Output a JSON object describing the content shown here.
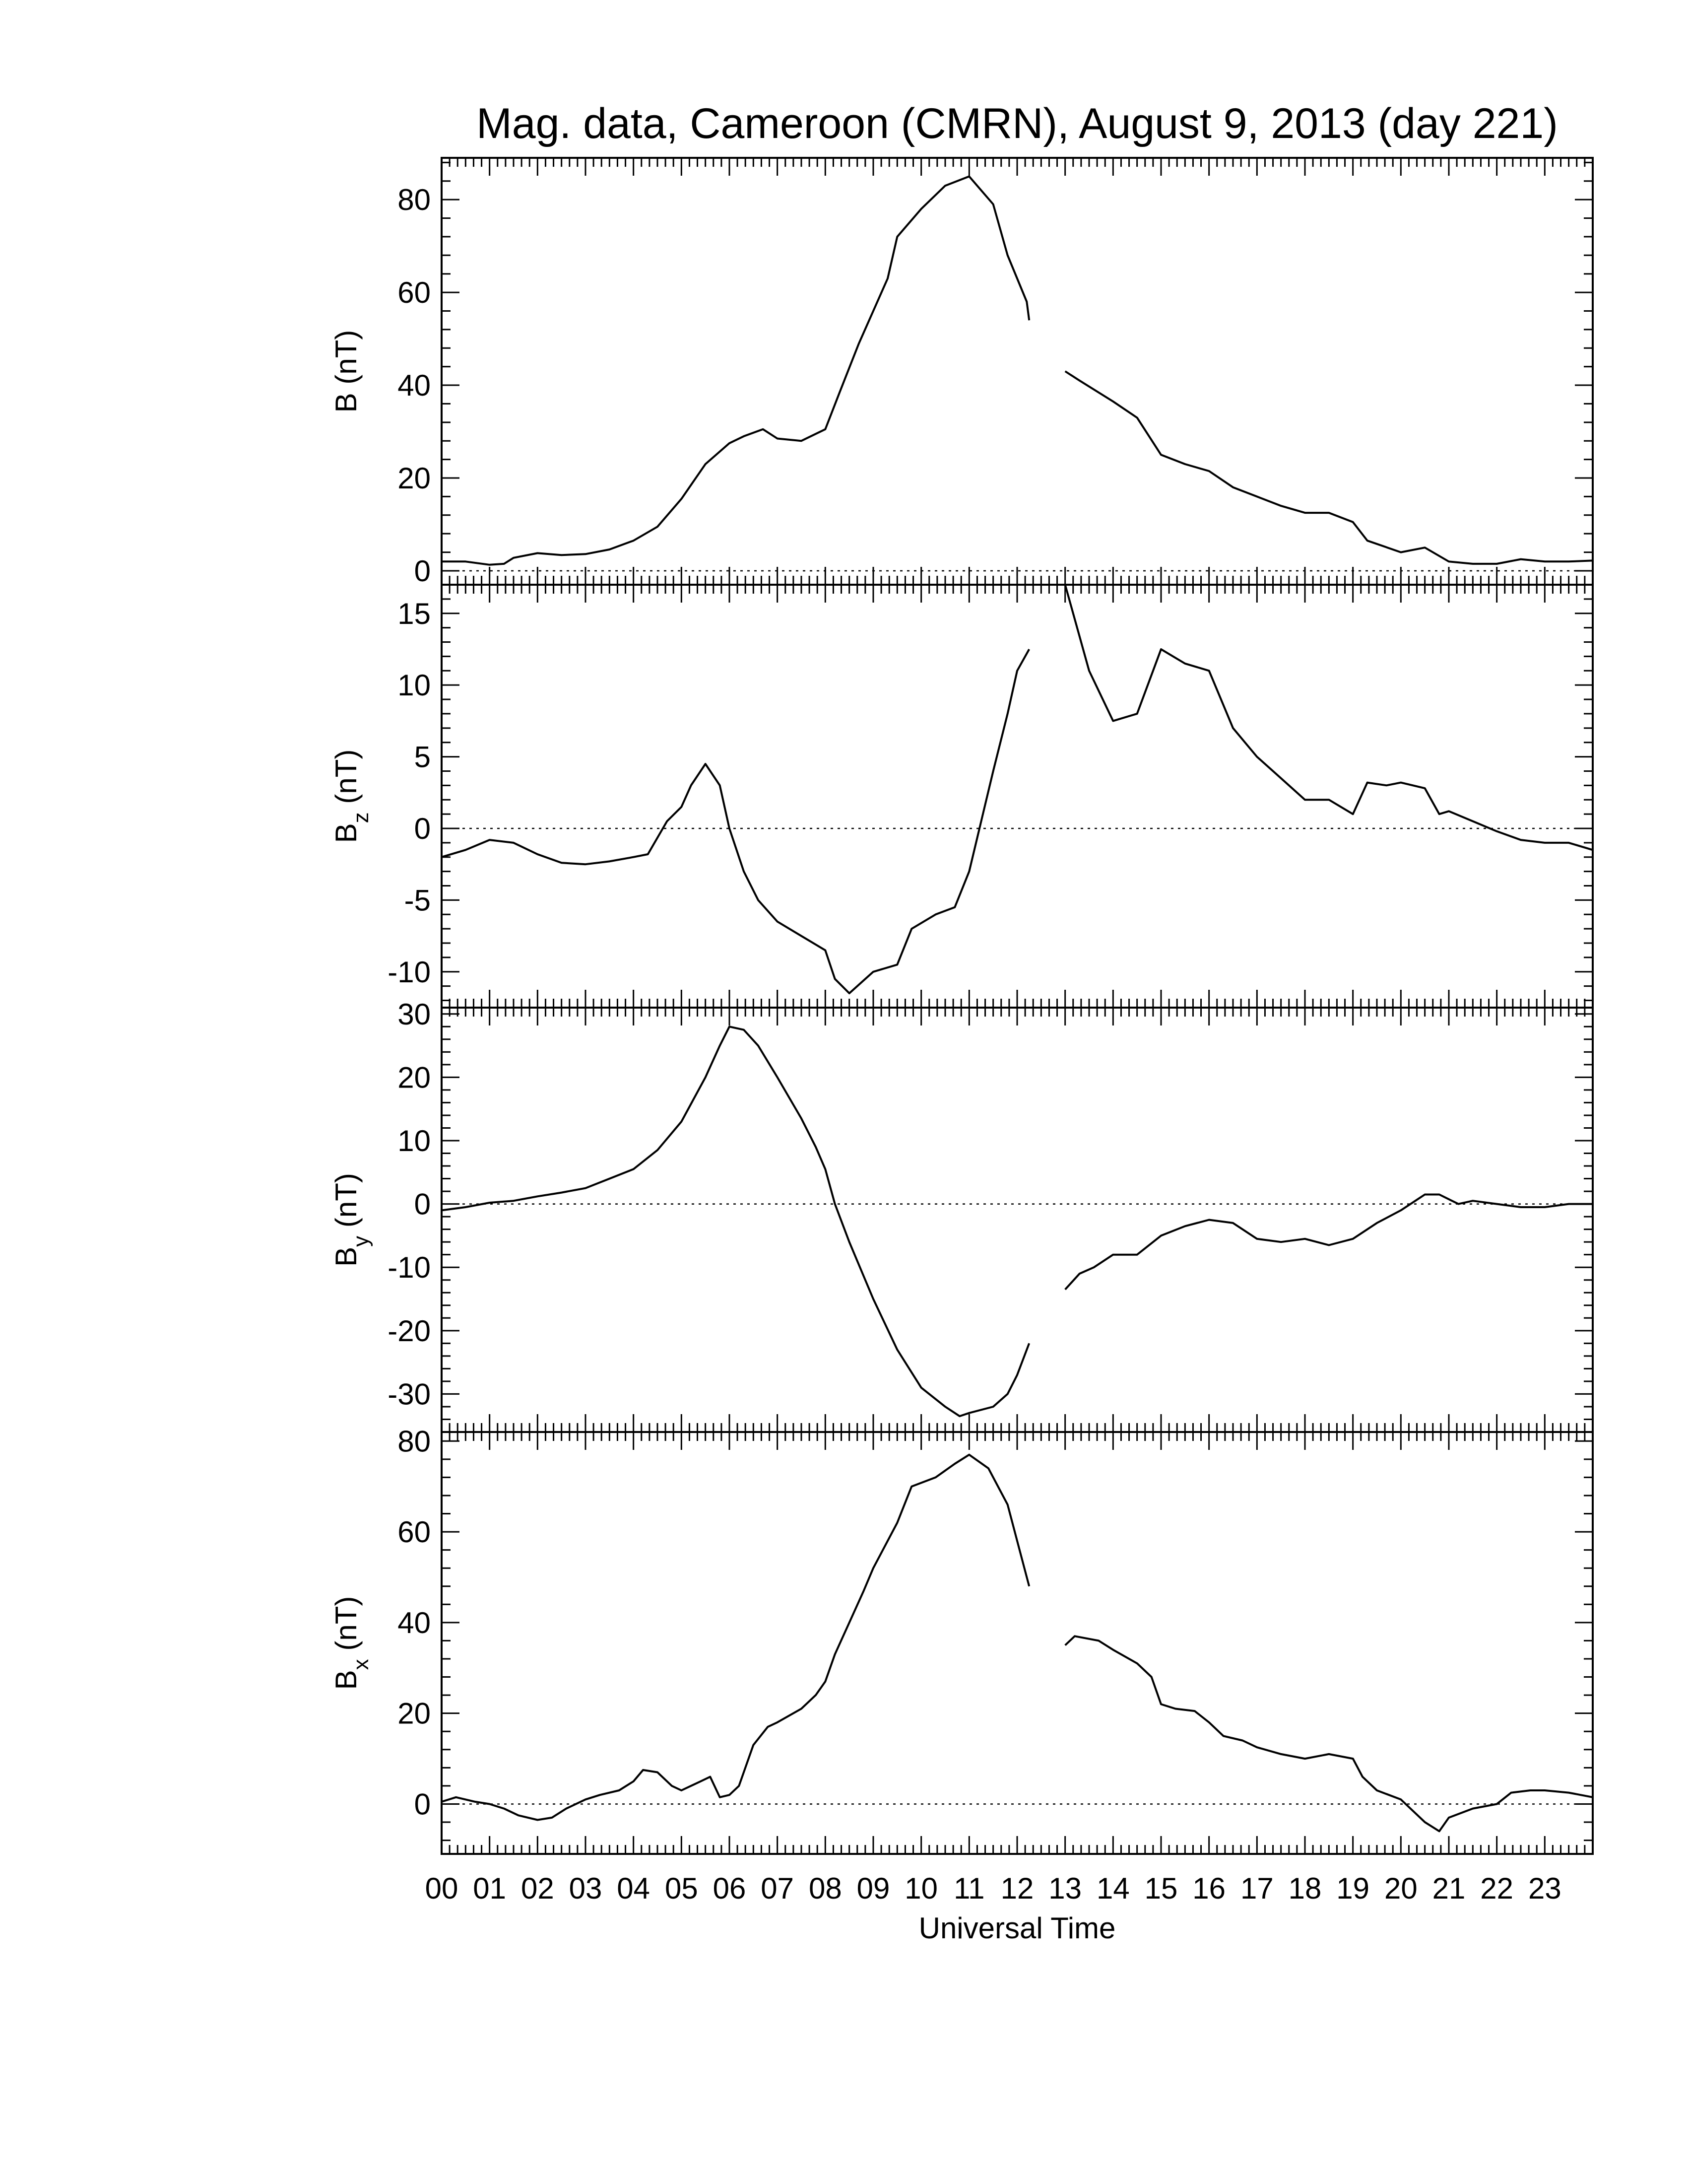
{
  "chart_data": {
    "type": "line",
    "title": "Mag. data, Cameroon (CMRN), August 9, 2013 (day 221)",
    "xlabel": "Universal Time",
    "xlim": [
      0,
      24
    ],
    "x_tick_labels": [
      "00",
      "01",
      "02",
      "03",
      "04",
      "05",
      "06",
      "07",
      "08",
      "09",
      "10",
      "11",
      "12",
      "13",
      "14",
      "15",
      "16",
      "17",
      "18",
      "19",
      "20",
      "21",
      "22",
      "23"
    ],
    "data_gap_hours": [
      12.25,
      13.0
    ],
    "panels": [
      {
        "id": "B",
        "ylabel_main": "B",
        "ylabel_sub": "",
        "ylabel_unit": "(nT)",
        "ylim": [
          -3,
          89
        ],
        "yticks": [
          0,
          20,
          40,
          60,
          80
        ],
        "ytick_labels": [
          "0",
          "20",
          "40",
          "60",
          "80"
        ],
        "zero_line": true,
        "segments": [
          [
            [
              0,
              2
            ],
            [
              0.5,
              2
            ],
            [
              1,
              1.3
            ],
            [
              1.3,
              1.5
            ],
            [
              1.5,
              2.8
            ],
            [
              2,
              3.8
            ],
            [
              2.5,
              3.4
            ],
            [
              3,
              3.6
            ],
            [
              3.5,
              4.6
            ],
            [
              4,
              6.5
            ],
            [
              4.5,
              9.5
            ],
            [
              5,
              15.5
            ],
            [
              5.5,
              23
            ],
            [
              6,
              27.5
            ],
            [
              6.3,
              29
            ],
            [
              6.7,
              30.5
            ],
            [
              7,
              28.5
            ],
            [
              7.5,
              28
            ],
            [
              8,
              30.5
            ],
            [
              8.3,
              38.5
            ],
            [
              8.7,
              49
            ],
            [
              9,
              56
            ],
            [
              9.3,
              63
            ],
            [
              9.5,
              72
            ],
            [
              10,
              78
            ],
            [
              10.5,
              83
            ],
            [
              11,
              85
            ],
            [
              11.5,
              79
            ],
            [
              11.8,
              68
            ],
            [
              12.2,
              58
            ],
            [
              12.25,
              54
            ]
          ],
          [
            [
              13,
              43
            ],
            [
              13.3,
              41
            ],
            [
              14,
              36.5
            ],
            [
              14.5,
              33
            ],
            [
              15,
              25
            ],
            [
              15.5,
              23
            ],
            [
              16,
              21.5
            ],
            [
              16.5,
              18
            ],
            [
              17,
              16
            ],
            [
              17.5,
              14
            ],
            [
              18,
              12.5
            ],
            [
              18.5,
              12.5
            ],
            [
              19,
              10.5
            ],
            [
              19.3,
              6.5
            ],
            [
              20,
              4
            ],
            [
              20.5,
              5
            ],
            [
              21,
              2
            ],
            [
              21.5,
              1.5
            ],
            [
              22,
              1.5
            ],
            [
              22.5,
              2.5
            ],
            [
              23,
              2
            ],
            [
              23.5,
              2
            ],
            [
              24,
              2.2
            ]
          ]
        ]
      },
      {
        "id": "Bz",
        "ylabel_main": "B",
        "ylabel_sub": "z",
        "ylabel_unit": "(nT)",
        "ylim": [
          -12.5,
          17
        ],
        "yticks": [
          -10,
          -5,
          0,
          5,
          10,
          15
        ],
        "ytick_labels": [
          "-10",
          "-5",
          "0",
          "5",
          "10",
          "15"
        ],
        "zero_line": true,
        "segments": [
          [
            [
              0,
              -2
            ],
            [
              0.5,
              -1.5
            ],
            [
              1,
              -0.8
            ],
            [
              1.5,
              -1
            ],
            [
              2,
              -1.8
            ],
            [
              2.5,
              -2.4
            ],
            [
              3,
              -2.5
            ],
            [
              3.5,
              -2.3
            ],
            [
              4,
              -2
            ],
            [
              4.3,
              -1.8
            ],
            [
              4.7,
              0.5
            ],
            [
              5,
              1.5
            ],
            [
              5.2,
              3
            ],
            [
              5.5,
              4.5
            ],
            [
              5.8,
              3
            ],
            [
              6,
              0
            ],
            [
              6.3,
              -3
            ],
            [
              6.6,
              -5
            ],
            [
              7,
              -6.5
            ],
            [
              7.5,
              -7.5
            ],
            [
              8,
              -8.5
            ],
            [
              8.2,
              -10.5
            ],
            [
              8.5,
              -11.5
            ],
            [
              9,
              -10
            ],
            [
              9.5,
              -9.5
            ],
            [
              9.8,
              -7
            ],
            [
              10.3,
              -6
            ],
            [
              10.7,
              -5.5
            ],
            [
              11,
              -3
            ],
            [
              11.5,
              4
            ],
            [
              11.8,
              8
            ],
            [
              12,
              11
            ],
            [
              12.25,
              12.5
            ]
          ],
          [
            [
              13,
              17
            ],
            [
              13.5,
              11
            ],
            [
              14,
              7.5
            ],
            [
              14.5,
              8
            ],
            [
              15,
              12.5
            ],
            [
              15.5,
              11.5
            ],
            [
              16,
              11
            ],
            [
              16.5,
              7
            ],
            [
              17,
              5
            ],
            [
              17.5,
              3.5
            ],
            [
              18,
              2
            ],
            [
              18.5,
              2
            ],
            [
              19,
              1
            ],
            [
              19.3,
              3.2
            ],
            [
              19.7,
              3
            ],
            [
              20,
              3.2
            ],
            [
              20.5,
              2.8
            ],
            [
              20.8,
              1
            ],
            [
              21,
              1.2
            ],
            [
              21.5,
              0.5
            ],
            [
              22,
              -0.2
            ],
            [
              22.5,
              -0.8
            ],
            [
              23,
              -1
            ],
            [
              23.5,
              -1
            ],
            [
              24,
              -1.5
            ]
          ]
        ]
      },
      {
        "id": "By",
        "ylabel_main": "B",
        "ylabel_sub": "y",
        "ylabel_unit": "(nT)",
        "ylim": [
          -36,
          31
        ],
        "yticks": [
          -30,
          -20,
          -10,
          0,
          10,
          20,
          30
        ],
        "ytick_labels": [
          "-30",
          "-20",
          "-10",
          "0",
          "10",
          "20",
          "30"
        ],
        "zero_line": true,
        "segments": [
          [
            [
              0,
              -1
            ],
            [
              0.5,
              -0.5
            ],
            [
              1,
              0.2
            ],
            [
              1.5,
              0.5
            ],
            [
              2,
              1.2
            ],
            [
              2.5,
              1.8
            ],
            [
              3,
              2.5
            ],
            [
              3.5,
              4
            ],
            [
              4,
              5.5
            ],
            [
              4.5,
              8.5
            ],
            [
              5,
              13
            ],
            [
              5.5,
              20
            ],
            [
              5.8,
              25
            ],
            [
              6,
              28
            ],
            [
              6.3,
              27.5
            ],
            [
              6.6,
              25
            ],
            [
              7,
              20
            ],
            [
              7.5,
              13.5
            ],
            [
              7.8,
              9
            ],
            [
              8,
              5.5
            ],
            [
              8.2,
              0
            ],
            [
              8.5,
              -6
            ],
            [
              9,
              -15
            ],
            [
              9.5,
              -23
            ],
            [
              10,
              -29
            ],
            [
              10.5,
              -32
            ],
            [
              10.8,
              -33.5
            ],
            [
              11,
              -33
            ],
            [
              11.5,
              -32
            ],
            [
              11.8,
              -30
            ],
            [
              12,
              -27
            ],
            [
              12.25,
              -22
            ]
          ],
          [
            [
              13,
              -13.5
            ],
            [
              13.3,
              -11
            ],
            [
              13.6,
              -10
            ],
            [
              14,
              -8
            ],
            [
              14.5,
              -8
            ],
            [
              15,
              -5
            ],
            [
              15.5,
              -3.5
            ],
            [
              16,
              -2.5
            ],
            [
              16.5,
              -3
            ],
            [
              17,
              -5.5
            ],
            [
              17.5,
              -6
            ],
            [
              18,
              -5.5
            ],
            [
              18.5,
              -6.5
            ],
            [
              19,
              -5.5
            ],
            [
              19.5,
              -3
            ],
            [
              20,
              -1
            ],
            [
              20.5,
              1.5
            ],
            [
              20.8,
              1.5
            ],
            [
              21.2,
              0
            ],
            [
              21.5,
              0.5
            ],
            [
              22,
              0
            ],
            [
              22.5,
              -0.5
            ],
            [
              23,
              -0.5
            ],
            [
              23.5,
              0
            ],
            [
              24,
              0
            ]
          ]
        ]
      },
      {
        "id": "Bx",
        "ylabel_main": "B",
        "ylabel_sub": "x",
        "ylabel_unit": "(nT)",
        "ylim": [
          -11,
          82
        ],
        "yticks": [
          0,
          20,
          40,
          60,
          80
        ],
        "ytick_labels": [
          "0",
          "20",
          "40",
          "60",
          "80"
        ],
        "zero_line": true,
        "segments": [
          [
            [
              0,
              0.5
            ],
            [
              0.3,
              1.5
            ],
            [
              0.7,
              0.5
            ],
            [
              1,
              0
            ],
            [
              1.3,
              -1
            ],
            [
              1.6,
              -2.5
            ],
            [
              2,
              -3.5
            ],
            [
              2.3,
              -3
            ],
            [
              2.6,
              -1
            ],
            [
              3,
              1
            ],
            [
              3.3,
              2
            ],
            [
              3.7,
              3
            ],
            [
              4,
              5
            ],
            [
              4.2,
              7.5
            ],
            [
              4.5,
              7
            ],
            [
              4.8,
              4
            ],
            [
              5,
              3
            ],
            [
              5.4,
              5
            ],
            [
              5.6,
              6
            ],
            [
              5.8,
              1.5
            ],
            [
              6,
              2
            ],
            [
              6.2,
              4
            ],
            [
              6.5,
              13
            ],
            [
              6.8,
              17
            ],
            [
              7,
              18
            ],
            [
              7.5,
              21
            ],
            [
              7.8,
              24
            ],
            [
              8,
              27
            ],
            [
              8.2,
              33
            ],
            [
              8.5,
              40
            ],
            [
              8.8,
              47
            ],
            [
              9,
              52
            ],
            [
              9.5,
              62
            ],
            [
              9.8,
              70
            ],
            [
              10.3,
              72
            ],
            [
              10.7,
              75
            ],
            [
              11,
              77
            ],
            [
              11.4,
              74
            ],
            [
              11.8,
              66
            ],
            [
              12,
              58
            ],
            [
              12.25,
              48
            ]
          ],
          [
            [
              13,
              35
            ],
            [
              13.2,
              37
            ],
            [
              13.7,
              36
            ],
            [
              14,
              34
            ],
            [
              14.5,
              31
            ],
            [
              14.8,
              28
            ],
            [
              15,
              22
            ],
            [
              15.3,
              21
            ],
            [
              15.7,
              20.5
            ],
            [
              16,
              18
            ],
            [
              16.3,
              15
            ],
            [
              16.7,
              14
            ],
            [
              17,
              12.5
            ],
            [
              17.5,
              11
            ],
            [
              18,
              10
            ],
            [
              18.5,
              11
            ],
            [
              19,
              10
            ],
            [
              19.2,
              6
            ],
            [
              19.5,
              3
            ],
            [
              20,
              1
            ],
            [
              20.3,
              -2
            ],
            [
              20.5,
              -4
            ],
            [
              20.8,
              -6
            ],
            [
              21,
              -3
            ],
            [
              21.5,
              -1
            ],
            [
              22,
              0
            ],
            [
              22.3,
              2.5
            ],
            [
              22.7,
              3
            ],
            [
              23,
              3
            ],
            [
              23.5,
              2.5
            ],
            [
              24,
              1.5
            ]
          ]
        ]
      }
    ]
  }
}
